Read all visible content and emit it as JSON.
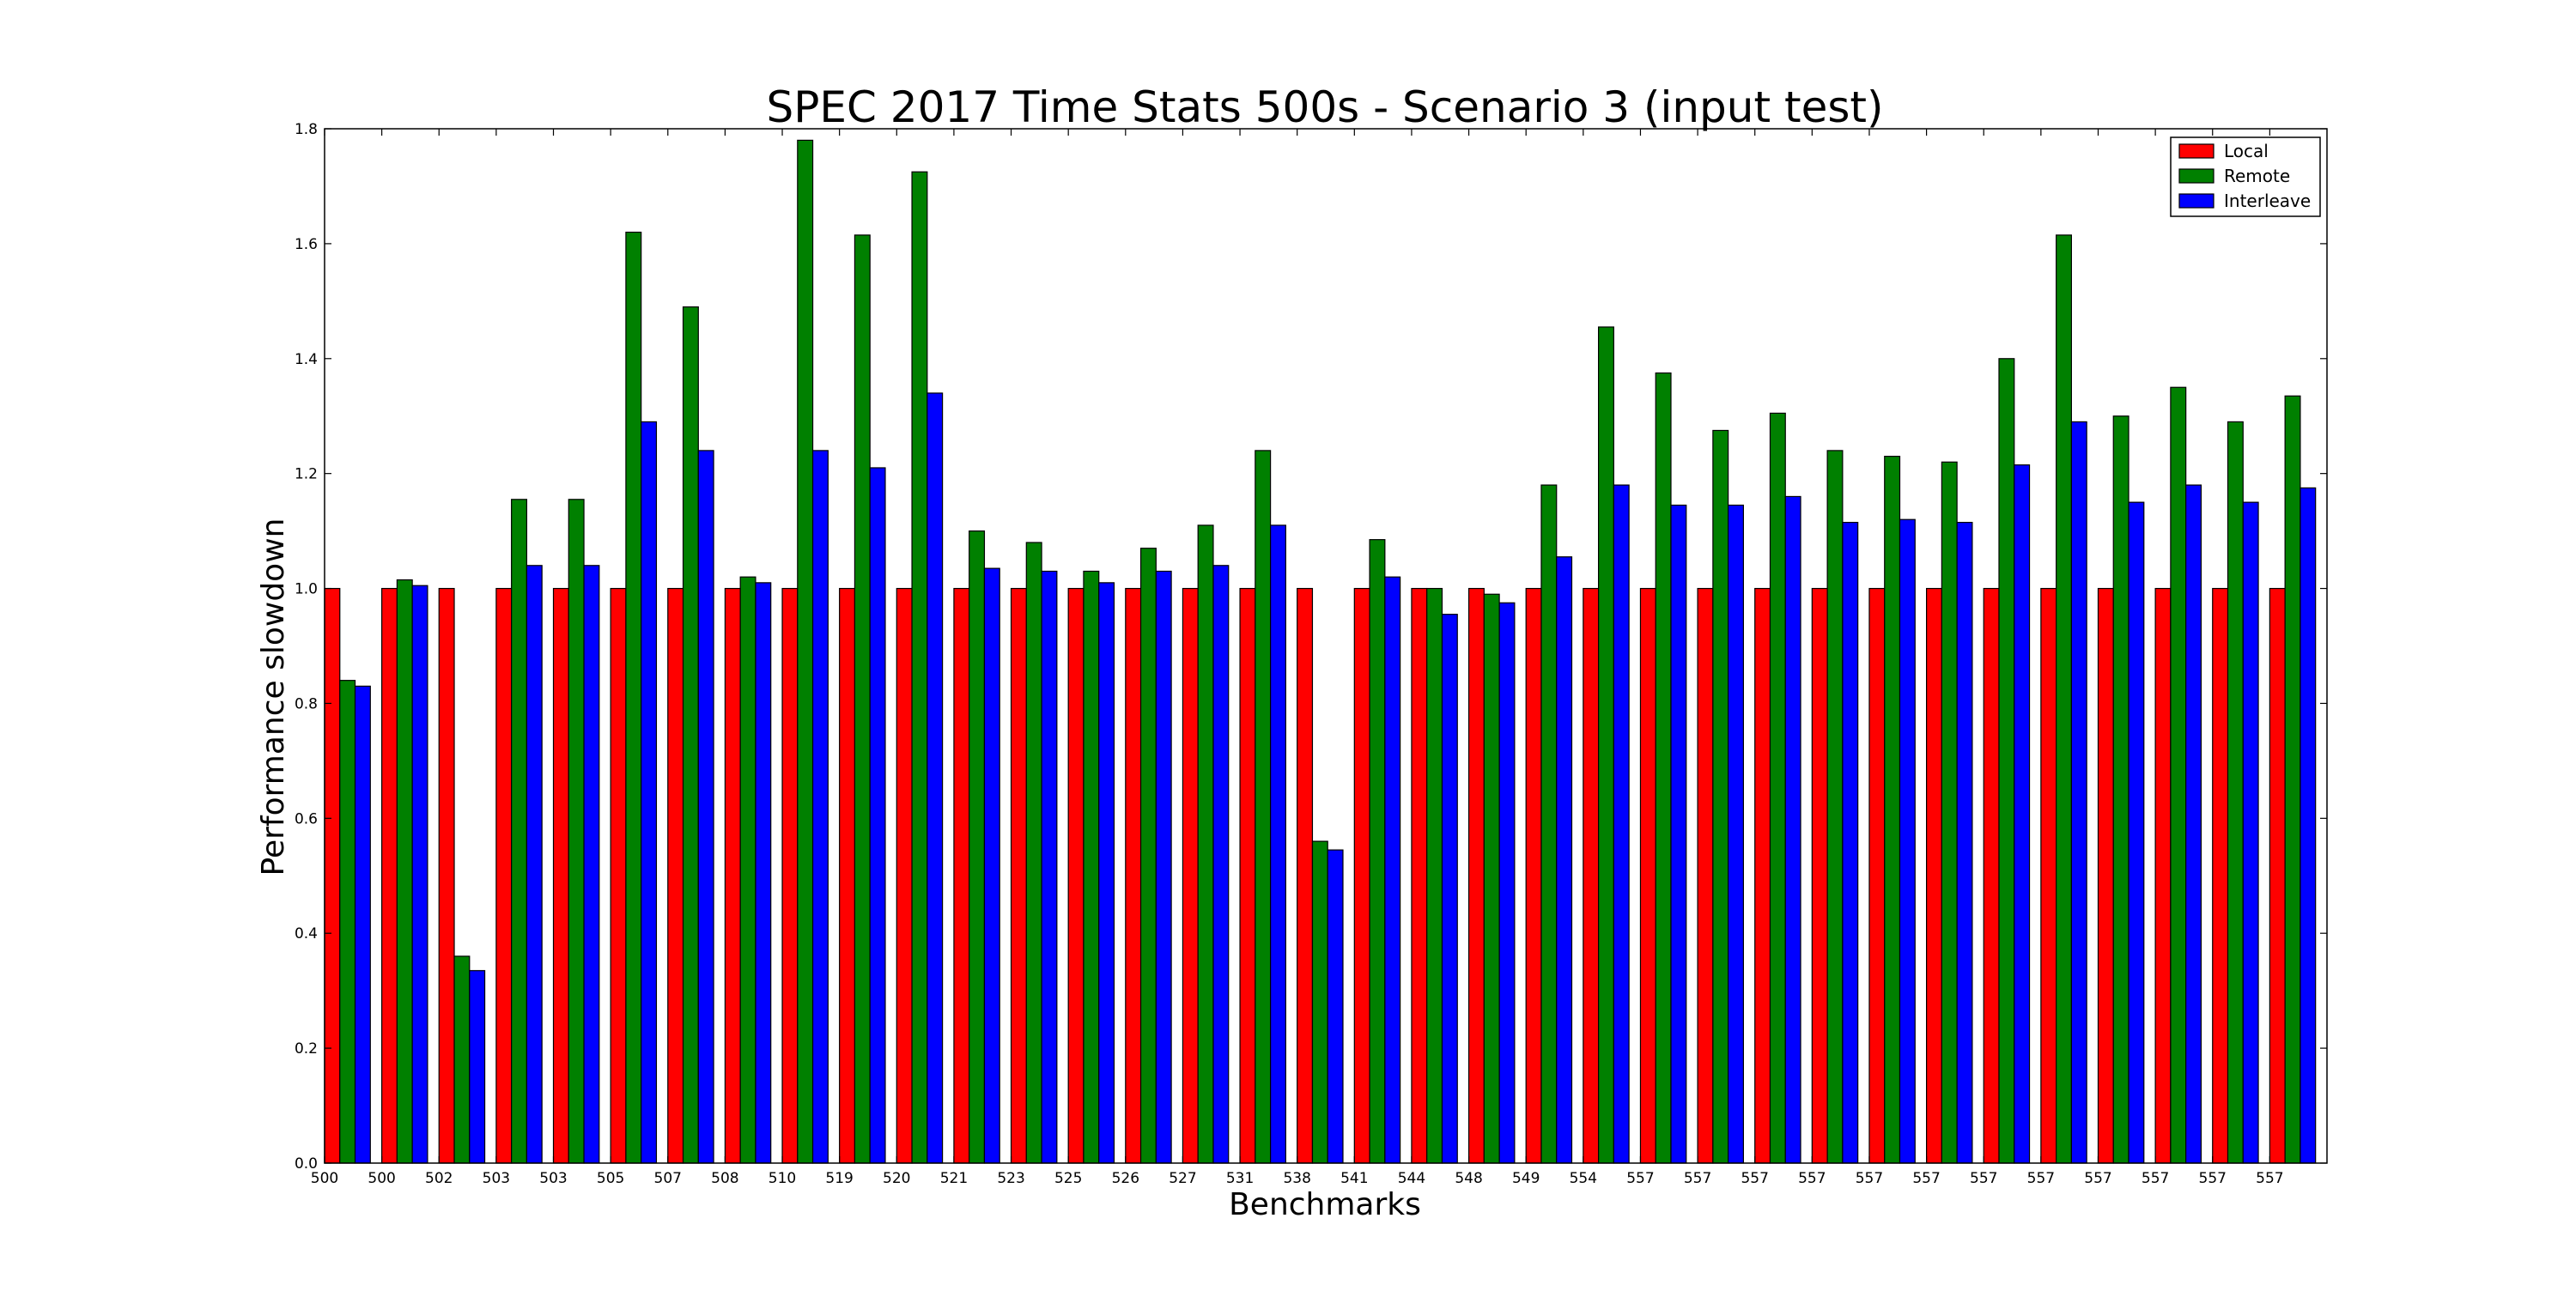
{
  "chart_data": {
    "type": "bar",
    "title": "SPEC 2017 Time Stats 500s - Scenario 3 (input test)",
    "xlabel": "Benchmarks",
    "ylabel": "Performance slowdown",
    "ylim": [
      0,
      1.8
    ],
    "yticks": [
      "0.0",
      "0.2",
      "0.4",
      "0.6",
      "0.8",
      "1.0",
      "1.2",
      "1.4",
      "1.6",
      "1.8"
    ],
    "grid": false,
    "legend_position": "top-right",
    "categories": [
      "500",
      "500",
      "502",
      "503",
      "503",
      "505",
      "507",
      "508",
      "510",
      "519",
      "520",
      "521",
      "523",
      "525",
      "526",
      "527",
      "531",
      "538",
      "541",
      "544",
      "548",
      "549",
      "554",
      "557",
      "557",
      "557",
      "557",
      "557",
      "557",
      "557",
      "557",
      "557",
      "557",
      "557",
      "557"
    ],
    "series": [
      {
        "name": "Local",
        "color": "#ff0000",
        "values": [
          1.0,
          1.0,
          1.0,
          1.0,
          1.0,
          1.0,
          1.0,
          1.0,
          1.0,
          1.0,
          1.0,
          1.0,
          1.0,
          1.0,
          1.0,
          1.0,
          1.0,
          1.0,
          1.0,
          1.0,
          1.0,
          1.0,
          1.0,
          1.0,
          1.0,
          1.0,
          1.0,
          1.0,
          1.0,
          1.0,
          1.0,
          1.0,
          1.0,
          1.0,
          1.0
        ]
      },
      {
        "name": "Remote",
        "color": "#008000",
        "values": [
          0.84,
          1.015,
          0.36,
          1.155,
          1.155,
          1.62,
          1.49,
          1.02,
          1.78,
          1.615,
          1.725,
          1.1,
          1.08,
          1.03,
          1.07,
          1.11,
          1.24,
          0.56,
          1.085,
          1.0,
          0.99,
          1.18,
          1.455,
          1.375,
          1.275,
          1.305,
          1.24,
          1.23,
          1.22,
          1.4,
          1.615,
          1.3,
          1.35,
          1.29,
          1.335
        ]
      },
      {
        "name": "Interleave",
        "color": "#0000ff",
        "values": [
          0.83,
          1.005,
          0.335,
          1.04,
          1.04,
          1.29,
          1.24,
          1.01,
          1.24,
          1.21,
          1.34,
          1.035,
          1.03,
          1.01,
          1.03,
          1.04,
          1.11,
          0.545,
          1.02,
          0.955,
          0.975,
          1.055,
          1.18,
          1.145,
          1.145,
          1.16,
          1.115,
          1.12,
          1.115,
          1.215,
          1.29,
          1.15,
          1.18,
          1.15,
          1.175
        ]
      }
    ]
  }
}
